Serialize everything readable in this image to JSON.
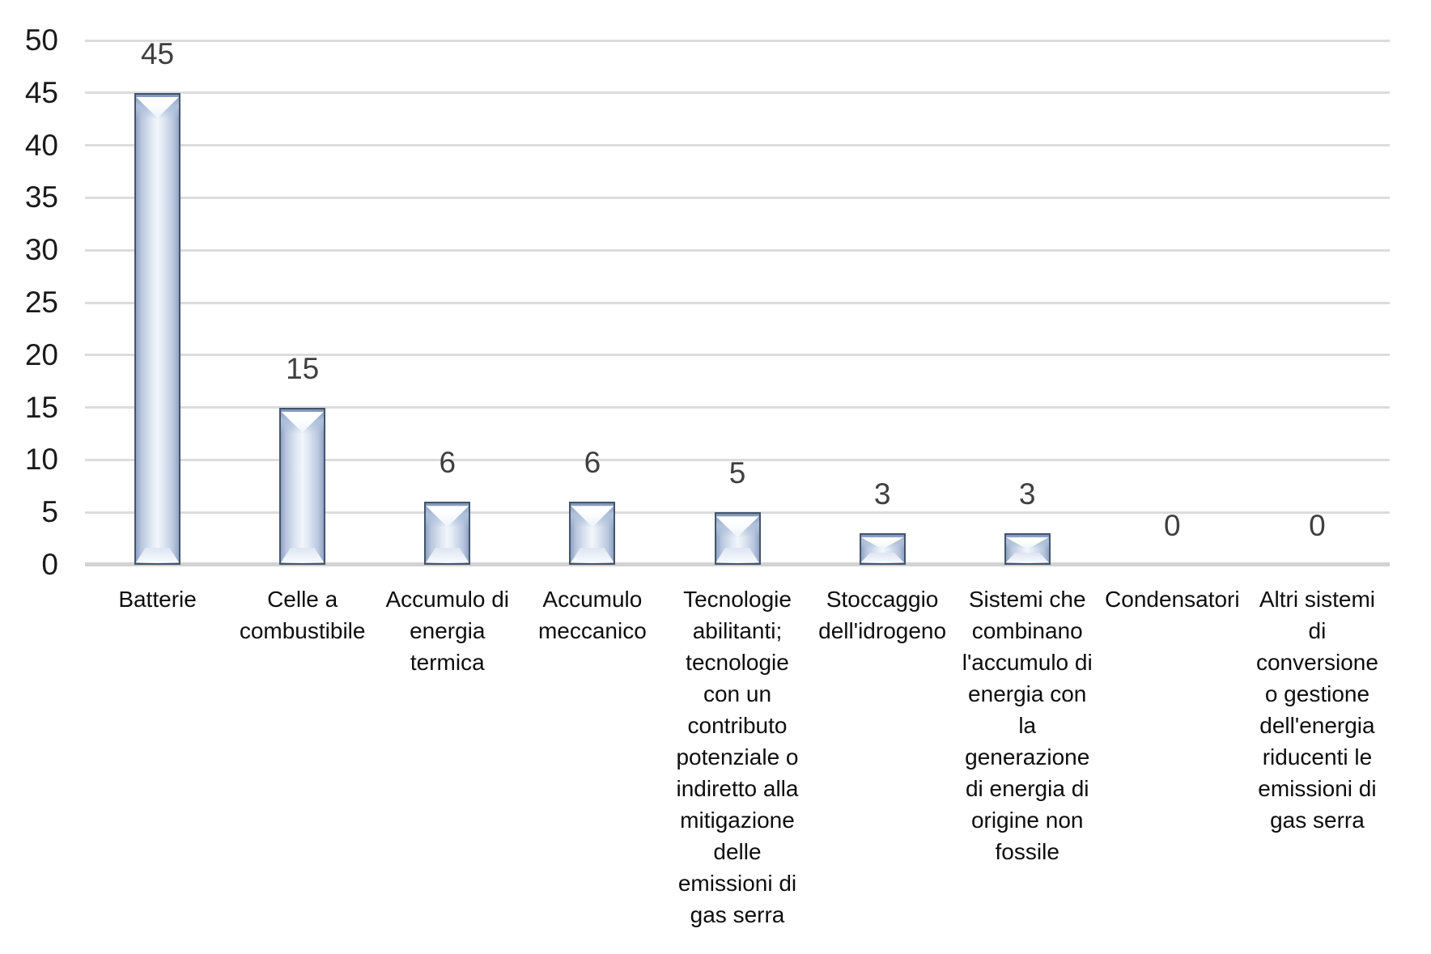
{
  "chart_data": {
    "type": "bar",
    "title": "",
    "xlabel": "",
    "ylabel": "",
    "ylim": [
      0,
      50
    ],
    "yticks": [
      0,
      5,
      10,
      15,
      20,
      25,
      30,
      35,
      40,
      45,
      50
    ],
    "grid": true,
    "legend": false,
    "categories": [
      "Batterie",
      "Celle a combustibile",
      "Accumulo di energia termica",
      "Accumulo meccanico",
      "Tecnologie abilitanti; tecnologie con un contributo potenziale o indiretto alla mitigazione delle emissioni di gas serra",
      "Stoccaggio dell'idrogeno",
      "Sistemi che combinano l'accumulo di energia con la generazione di energia di origine non fossile",
      "Condensatori",
      "Altri sistemi di conversione o gestione dell'energia riducenti le emissioni di gas serra"
    ],
    "category_lines": [
      [
        "Batterie"
      ],
      [
        "Celle a",
        "combustibile"
      ],
      [
        "Accumulo di",
        "energia",
        "termica"
      ],
      [
        "Accumulo",
        "meccanico"
      ],
      [
        "Tecnologie",
        "abilitanti;",
        "tecnologie",
        "con un",
        "contributo",
        "potenziale o",
        "indiretto alla",
        "mitigazione",
        "delle",
        "emissioni di",
        "gas serra"
      ],
      [
        "Stoccaggio",
        "dell'idrogeno"
      ],
      [
        "Sistemi che",
        "combinano",
        "l'accumulo di",
        "energia con",
        "la",
        "generazione",
        "di energia di",
        "origine non",
        "fossile"
      ],
      [
        "Condensatori"
      ],
      [
        "Altri sistemi",
        "di",
        "conversione",
        "o gestione",
        "dell'energia",
        "riducenti le",
        "emissioni di",
        "gas serra"
      ]
    ],
    "values": [
      45,
      15,
      6,
      6,
      5,
      3,
      3,
      0,
      0
    ],
    "data_labels": [
      "45",
      "15",
      "6",
      "6",
      "5",
      "3",
      "3",
      "0",
      "0"
    ],
    "colors": {
      "background": "#FFFFFF",
      "bar_border": "#44546A",
      "bar_fill_edge": "#8FA3C4",
      "bar_fill_center": "#F2F6FB",
      "gridline": "#DCDCDC",
      "axis_line": "#D2D2D2",
      "data_label_text": "#3F3F3F",
      "y_tick_text": "#1A1A1A",
      "category_text": "#0D0D0D"
    }
  }
}
